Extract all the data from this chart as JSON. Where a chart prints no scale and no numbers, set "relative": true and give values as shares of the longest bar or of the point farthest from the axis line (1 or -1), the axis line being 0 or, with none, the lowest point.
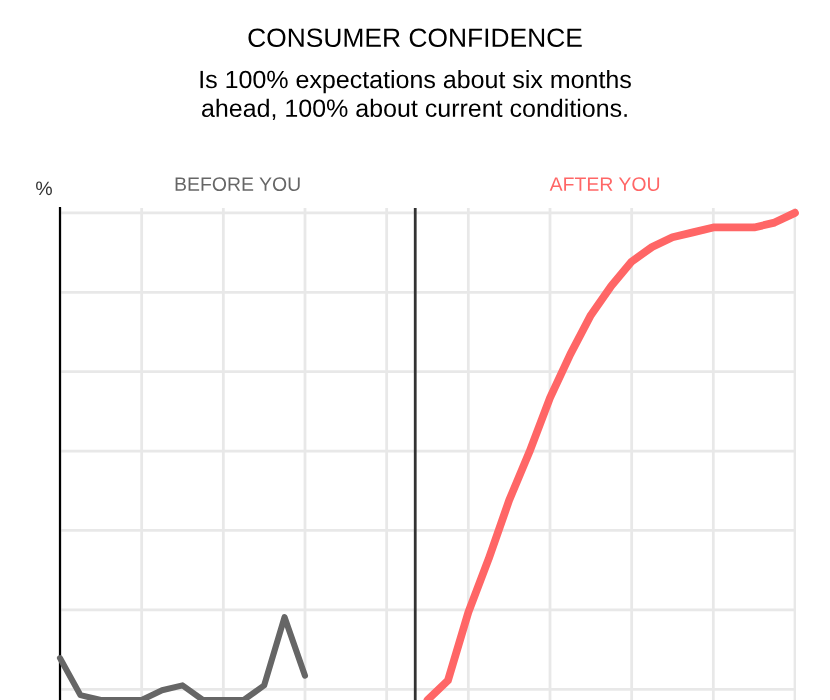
{
  "chart_data": {
    "type": "line",
    "title": "CONSUMER CONFIDENCE",
    "subtitle": "Is 100% expectations about six months\nahead, 100% about current conditions.",
    "ylabel": "%",
    "annotations": [
      "BEFORE YOU",
      "AFTER YOU"
    ],
    "relative": true,
    "grid": true,
    "legend": false,
    "marker": "none",
    "line_style": "solid",
    "categories": [
      null,
      null,
      null,
      null,
      null,
      null,
      null,
      null,
      null,
      null,
      null,
      null,
      null,
      null,
      null,
      null,
      null,
      null,
      null,
      null,
      null,
      null,
      null,
      null,
      null,
      null,
      null,
      null,
      null,
      null,
      null,
      null,
      null,
      null,
      null,
      null,
      null
    ],
    "series": [
      {
        "color": "#666666",
        "values": [
          0.086,
          0.01,
          0,
          0,
          0,
          0.02,
          0.03,
          0,
          0,
          0,
          0.03,
          0.17,
          0.05,
          null,
          null,
          null,
          null,
          null,
          null,
          null,
          null,
          null,
          null,
          null,
          null,
          null,
          null,
          null,
          null,
          null,
          null,
          null,
          null,
          null,
          null,
          null,
          null
        ]
      },
      {
        "color": "#ff6666",
        "values": [
          null,
          null,
          null,
          null,
          null,
          null,
          null,
          null,
          null,
          null,
          null,
          null,
          null,
          null,
          null,
          null,
          null,
          null,
          0,
          0.04,
          0.18,
          0.29,
          0.41,
          0.51,
          0.62,
          0.71,
          0.79,
          0.85,
          0.9,
          0.93,
          0.95,
          0.96,
          0.97,
          0.97,
          0.97,
          0.98,
          1
        ]
      }
    ]
  }
}
